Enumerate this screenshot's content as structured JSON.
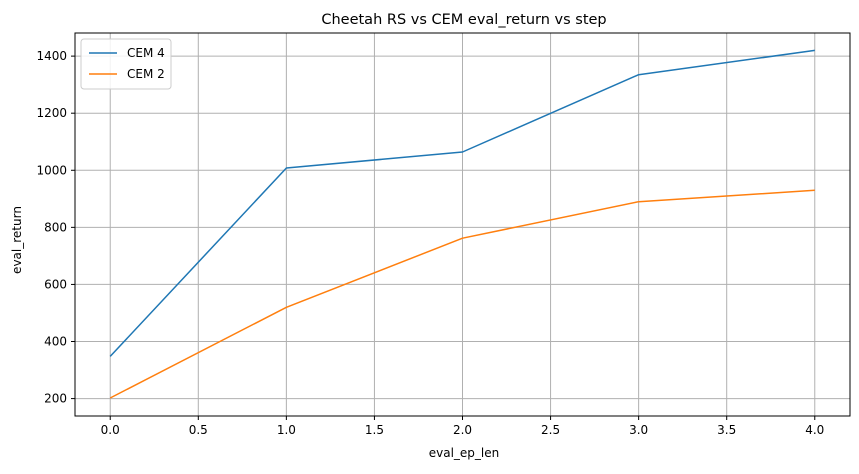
{
  "chart_data": {
    "type": "line",
    "title": "Cheetah RS vs CEM eval_return vs step",
    "xlabel": "eval_ep_len",
    "ylabel": "eval_return",
    "x": [
      0,
      1,
      2,
      3,
      4
    ],
    "series": [
      {
        "name": "CEM 4",
        "color": "#1f77b4",
        "values": [
          348,
          1008,
          1064,
          1335,
          1420
        ]
      },
      {
        "name": "CEM 2",
        "color": "#ff7f0e",
        "values": [
          202,
          520,
          762,
          890,
          930
        ]
      }
    ],
    "xlim": [
      -0.2,
      4.2
    ],
    "ylim": [
      139,
      1481
    ],
    "xticks": [
      0.0,
      0.5,
      1.0,
      1.5,
      2.0,
      2.5,
      3.0,
      3.5,
      4.0
    ],
    "xtick_labels": [
      "0.0",
      "0.5",
      "1.0",
      "1.5",
      "2.0",
      "2.5",
      "3.0",
      "3.5",
      "4.0"
    ],
    "yticks": [
      200,
      400,
      600,
      800,
      1000,
      1200,
      1400
    ],
    "ytick_labels": [
      "200",
      "400",
      "600",
      "800",
      "1000",
      "1200",
      "1400"
    ],
    "grid": true,
    "legend_position": "upper-left"
  }
}
